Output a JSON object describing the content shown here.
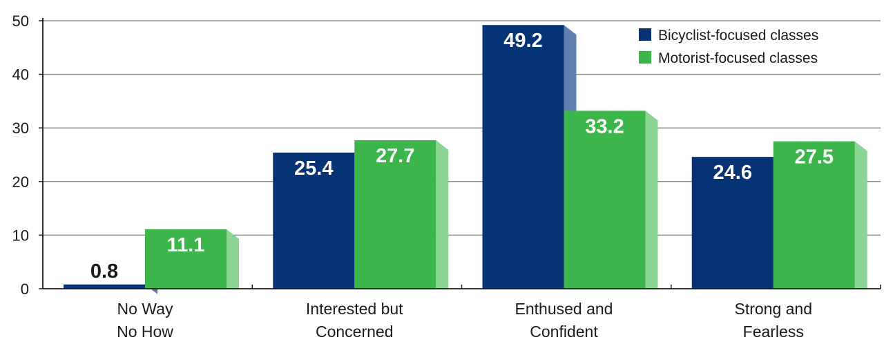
{
  "chart_data": {
    "type": "bar",
    "categories": [
      [
        "No Way",
        "No How"
      ],
      [
        "Interested but",
        "Concerned"
      ],
      [
        "Enthused and",
        "Confident"
      ],
      [
        "Strong and",
        "Fearless"
      ]
    ],
    "series": [
      {
        "name": "Bicyclist-focused classes",
        "values": [
          0.8,
          25.4,
          49.2,
          24.6
        ],
        "color": "#063374",
        "side_color": "#5f7fae"
      },
      {
        "name": "Motorist-focused classes",
        "values": [
          11.1,
          27.7,
          33.2,
          27.5
        ],
        "color": "#3cb54a",
        "side_color": "#8cd494"
      }
    ],
    "data_labels": [
      [
        "0.8",
        "25.4",
        "49.2",
        "24.6"
      ],
      [
        "11.1",
        "27.7",
        "33.2",
        "27.5"
      ]
    ],
    "yticks": [
      "0",
      "10",
      "20",
      "30",
      "40",
      "50"
    ],
    "ylim": [
      0,
      50
    ],
    "grid": true,
    "legend_position": "top-right",
    "title": "",
    "xlabel": "",
    "ylabel": ""
  }
}
